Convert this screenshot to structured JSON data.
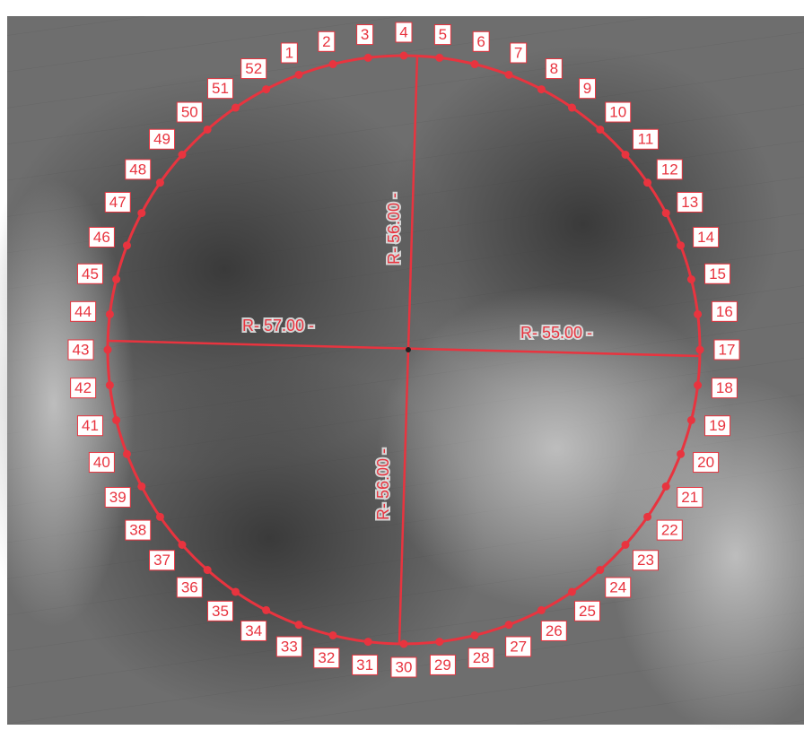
{
  "points": [
    {
      "label": "1"
    },
    {
      "label": "2"
    },
    {
      "label": "3"
    },
    {
      "label": "4"
    },
    {
      "label": "5"
    },
    {
      "label": "6"
    },
    {
      "label": "7"
    },
    {
      "label": "8"
    },
    {
      "label": "9"
    },
    {
      "label": "10"
    },
    {
      "label": "11"
    },
    {
      "label": "12"
    },
    {
      "label": "13"
    },
    {
      "label": "14"
    },
    {
      "label": "15"
    },
    {
      "label": "16"
    },
    {
      "label": "17"
    },
    {
      "label": "18"
    },
    {
      "label": "19"
    },
    {
      "label": "20"
    },
    {
      "label": "21"
    },
    {
      "label": "22"
    },
    {
      "label": "23"
    },
    {
      "label": "24"
    },
    {
      "label": "25"
    },
    {
      "label": "26"
    },
    {
      "label": "27"
    },
    {
      "label": "28"
    },
    {
      "label": "29"
    },
    {
      "label": "30"
    },
    {
      "label": "31"
    },
    {
      "label": "32"
    },
    {
      "label": "33"
    },
    {
      "label": "34"
    },
    {
      "label": "35"
    },
    {
      "label": "36"
    },
    {
      "label": "37"
    },
    {
      "label": "38"
    },
    {
      "label": "39"
    },
    {
      "label": "40"
    },
    {
      "label": "41"
    },
    {
      "label": "42"
    },
    {
      "label": "43"
    },
    {
      "label": "44"
    },
    {
      "label": "45"
    },
    {
      "label": "46"
    },
    {
      "label": "47"
    },
    {
      "label": "48"
    },
    {
      "label": "49"
    },
    {
      "label": "50"
    },
    {
      "label": "51"
    },
    {
      "label": "52"
    }
  ],
  "radii": {
    "north": {
      "label": "R- 56.00 -"
    },
    "west": {
      "label": "R- 57.00 -"
    },
    "east": {
      "label": "R- 55.00 -"
    },
    "south": {
      "label": "R- 56.00 -"
    }
  }
}
